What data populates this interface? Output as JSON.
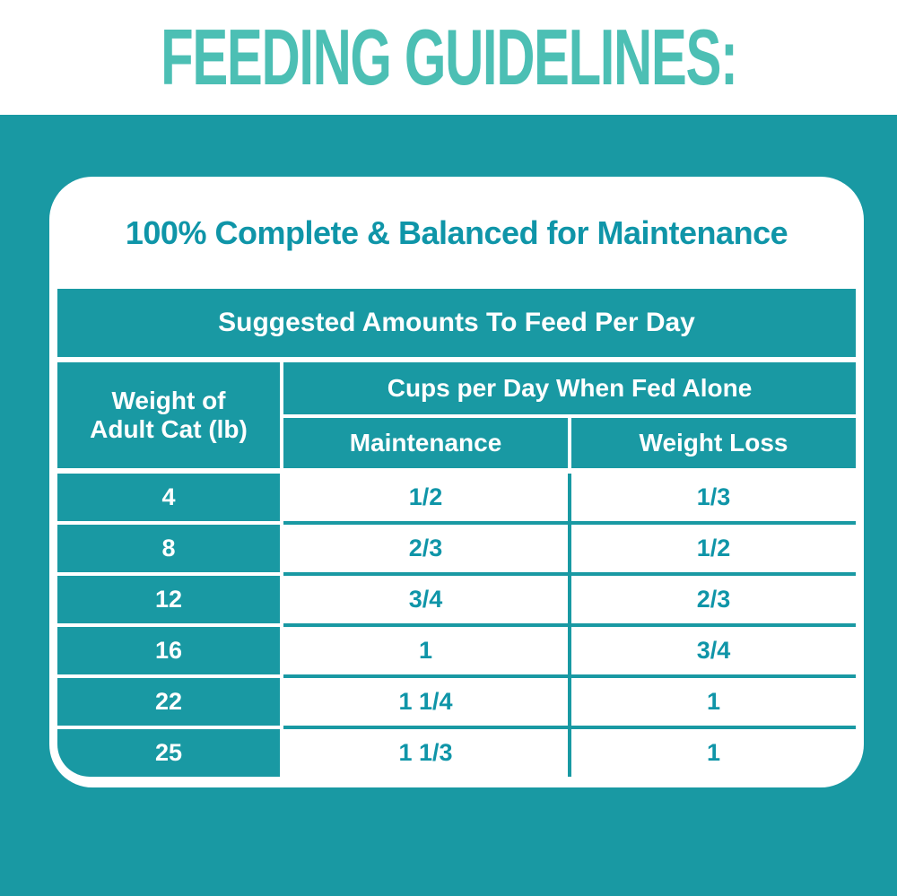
{
  "header": {
    "title": "FEEDING GUIDELINES:"
  },
  "card": {
    "subtitle": "100% Complete & Balanced for Maintenance",
    "table": {
      "title": "Suggested Amounts To Feed Per Day",
      "weight_header": "Weight of\nAdult Cat (lb)",
      "cups_header": "Cups per Day When Fed Alone",
      "columns": [
        "Maintenance",
        "Weight Loss"
      ],
      "rows": [
        {
          "weight": "4",
          "maintenance": "1/2",
          "weight_loss": "1/3"
        },
        {
          "weight": "8",
          "maintenance": "2/3",
          "weight_loss": "1/2"
        },
        {
          "weight": "12",
          "maintenance": "3/4",
          "weight_loss": "2/3"
        },
        {
          "weight": "16",
          "maintenance": "1",
          "weight_loss": "3/4"
        },
        {
          "weight": "22",
          "maintenance": "1 1/4",
          "weight_loss": "1"
        },
        {
          "weight": "25",
          "maintenance": "1 1/3",
          "weight_loss": "1"
        }
      ]
    }
  },
  "colors": {
    "teal": "#1999A3",
    "teal_text": "#0F95A8",
    "light_teal": "#4CBFB4",
    "white": "#FFFFFF"
  },
  "chart_data": {
    "type": "table",
    "title": "Suggested Amounts To Feed Per Day",
    "column_headers": [
      "Weight of Adult Cat (lb)",
      "Maintenance (cups/day fed alone)",
      "Weight Loss (cups/day fed alone)"
    ],
    "rows": [
      [
        4,
        "1/2",
        "1/3"
      ],
      [
        8,
        "2/3",
        "1/2"
      ],
      [
        12,
        "3/4",
        "2/3"
      ],
      [
        16,
        "1",
        "3/4"
      ],
      [
        22,
        "1 1/4",
        "1"
      ],
      [
        25,
        "1 1/3",
        "1"
      ]
    ]
  }
}
